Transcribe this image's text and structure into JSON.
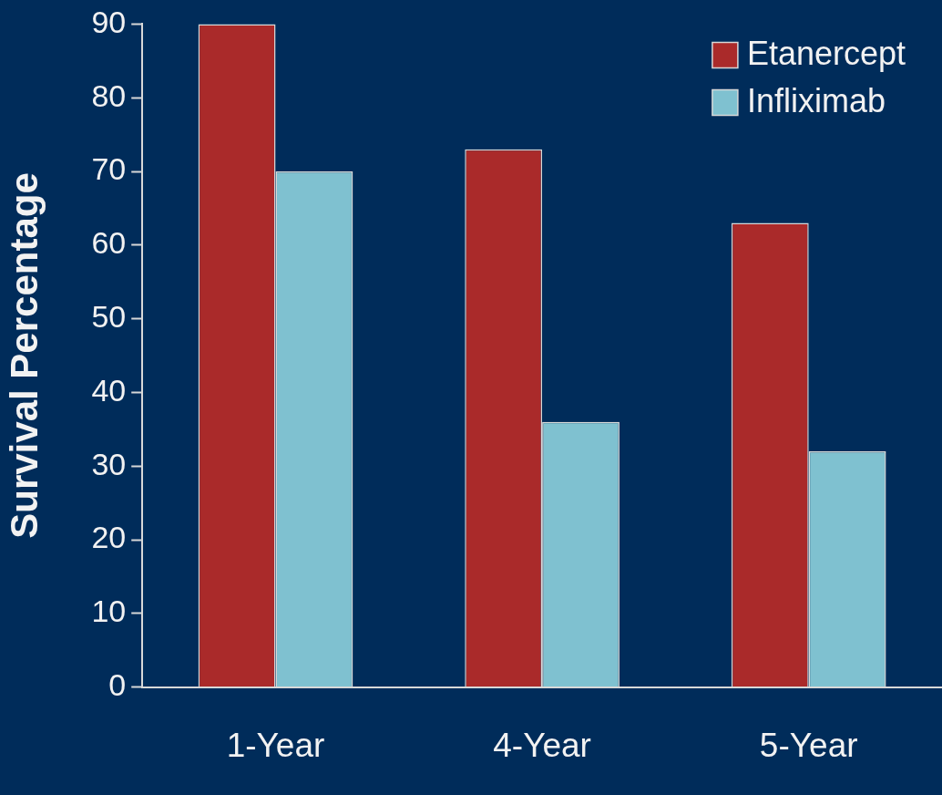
{
  "chart_data": {
    "type": "bar",
    "ylabel": "Survival Percentage",
    "categories": [
      "1-Year",
      "4-Year",
      "5-Year"
    ],
    "series": [
      {
        "name": "Etanercept",
        "color": "#aa2a2a",
        "values": [
          90,
          73,
          63
        ]
      },
      {
        "name": "Infliximab",
        "color": "#7fc1d0",
        "values": [
          70,
          36,
          32
        ]
      }
    ],
    "ylim": [
      0,
      90
    ],
    "yticks": [
      0,
      10,
      20,
      30,
      40,
      50,
      60,
      70,
      80,
      90
    ],
    "grid": false,
    "legend": "top right"
  }
}
